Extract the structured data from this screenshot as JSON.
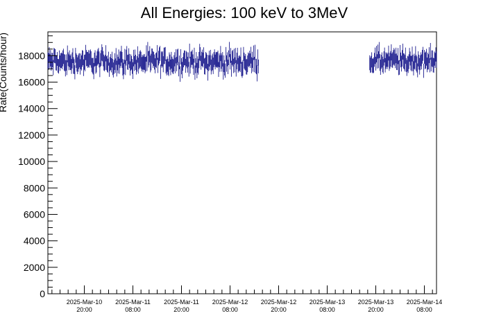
{
  "chart_data": {
    "type": "scatter",
    "title": "All Energies:  100 keV to 3MeV",
    "ylabel": "Rate(Counts/hour)",
    "xlabel": "",
    "ylim": [
      0,
      19800
    ],
    "xlim": [
      "2025-03-10 11:00",
      "2025-03-14 11:00"
    ],
    "y_ticks": [
      0,
      2000,
      4000,
      6000,
      8000,
      10000,
      12000,
      14000,
      16000,
      18000
    ],
    "x_ticks": [
      {
        "t": "2025-03-10 20:00",
        "date": "2025-Mar-10",
        "time": "20:00"
      },
      {
        "t": "2025-03-11 08:00",
        "date": "2025-Mar-11",
        "time": "08:00"
      },
      {
        "t": "2025-03-11 20:00",
        "date": "2025-Mar-11",
        "time": "20:00"
      },
      {
        "t": "2025-03-12 08:00",
        "date": "2025-Mar-12",
        "time": "08:00"
      },
      {
        "t": "2025-03-12 20:00",
        "date": "2025-Mar-12",
        "time": "20:00"
      },
      {
        "t": "2025-03-13 08:00",
        "date": "2025-Mar-13",
        "time": "08:00"
      },
      {
        "t": "2025-03-13 20:00",
        "date": "2025-Mar-13",
        "time": "20:00"
      },
      {
        "t": "2025-03-14 08:00",
        "date": "2025-Mar-14",
        "time": "08:00"
      }
    ],
    "series": [
      {
        "color": "#000080",
        "segments": [
          {
            "start": "2025-03-10 11:00",
            "end": "2025-03-12 15:00",
            "mean": 17550,
            "noise": 700
          },
          {
            "start": "2025-03-13 18:30",
            "end": "2025-03-14 11:00",
            "mean": 17600,
            "noise": 700
          }
        ]
      }
    ],
    "grid": false,
    "legend": "none"
  }
}
